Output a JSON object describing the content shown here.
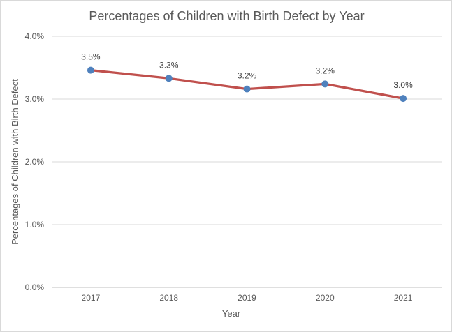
{
  "chart_data": {
    "type": "line",
    "title": "Percentages of Children with Birth Defect by Year",
    "xlabel": "Year",
    "ylabel": "Percentages of Children with Birth Defect",
    "categories": [
      "2017",
      "2018",
      "2019",
      "2020",
      "2021"
    ],
    "series": [
      {
        "name": "Percentages of Children with Birth Defect",
        "values": [
          3.46,
          3.33,
          3.16,
          3.24,
          3.01
        ],
        "point_labels": [
          "3.5%",
          "3.3%",
          "3.2%",
          "3.2%",
          "3.0%"
        ]
      }
    ],
    "ylim": [
      0,
      4
    ],
    "ytick_values": [
      0,
      1,
      2,
      3,
      4
    ],
    "ytick_labels": [
      "0.0%",
      "1.0%",
      "2.0%",
      "3.0%",
      "4.0%"
    ],
    "units": "percent",
    "grid": "horizontal",
    "legend": "none"
  },
  "colors": {
    "line": "#C0504D",
    "marker": "#4F81BD",
    "gridline": "#D9D9D9",
    "axis_line": "#BFBFBF",
    "title_text": "#595959",
    "tick_text": "#595959",
    "data_label_text": "#404040",
    "chart_border": "#D9D9D9",
    "background": "#FFFFFF"
  }
}
